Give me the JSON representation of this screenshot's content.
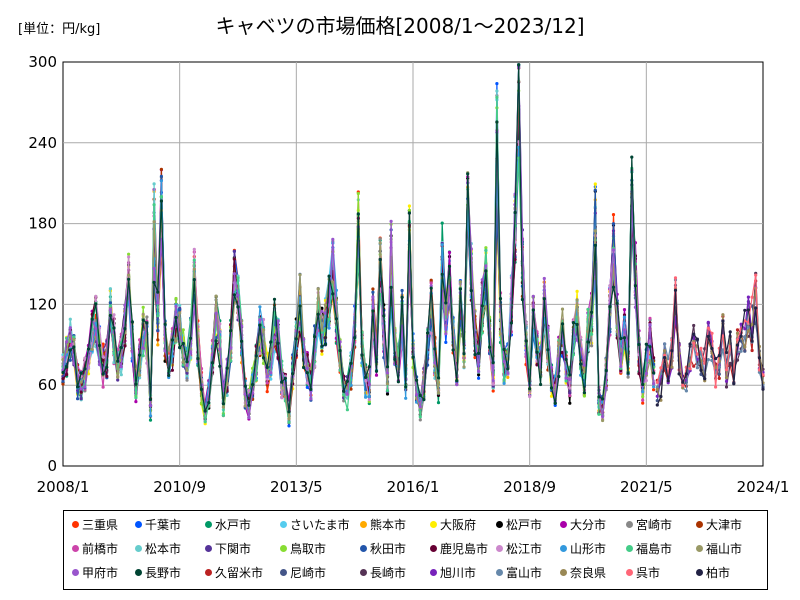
{
  "chart_data": {
    "type": "line",
    "title": "キャベツの市場価格[2008/1～2023/12]",
    "unit_label": "[単位：円/kg]",
    "ylim": [
      0,
      300
    ],
    "yticks": [
      0,
      60,
      120,
      180,
      240,
      300
    ],
    "xlim": [
      "2008/1",
      "2024/1"
    ],
    "xticks": [
      "2008/1",
      "2010/9",
      "2013/5",
      "2016/1",
      "2018/9",
      "2021/5",
      "2024/1"
    ],
    "grid": true,
    "legend_position": "bottom",
    "x_monthly_from": "2008/1",
    "representative_monthly_values": [
      70,
      80,
      95,
      85,
      62,
      60,
      68,
      80,
      100,
      110,
      90,
      75,
      80,
      118,
      95,
      75,
      85,
      105,
      140,
      92,
      60,
      78,
      100,
      95,
      45,
      70,
      110,
      190,
      95,
      75,
      88,
      110,
      105,
      85,
      75,
      95,
      140,
      90,
      60,
      40,
      55,
      80,
      110,
      90,
      50,
      65,
      95,
      140,
      125,
      95,
      55,
      45,
      60,
      75,
      100,
      90,
      70,
      80,
      105,
      95,
      65,
      55,
      40,
      70,
      95,
      120,
      85,
      75,
      60,
      90,
      115,
      100,
      105,
      120,
      145,
      110,
      80,
      60,
      55,
      70,
      100,
      180,
      90,
      65,
      60,
      110,
      80,
      150,
      100,
      65,
      185,
      90,
      75,
      110,
      65,
      165,
      85,
      55,
      45,
      60,
      90,
      120,
      80,
      60,
      70,
      110,
      140,
      95,
      70,
      120,
      90,
      195,
      140,
      100,
      80,
      120,
      140,
      95,
      70,
      90,
      110,
      75,
      80,
      120,
      175,
      265,
      150,
      90,
      60,
      110,
      90,
      75,
      120,
      90,
      65,
      55,
      80,
      100,
      75,
      60,
      95,
      110,
      80,
      65,
      100,
      110,
      75,
      50,
      45,
      70,
      120,
      160,
      110,
      80,
      100,
      80,
      200,
      140,
      85,
      60,
      75,
      95,
      70,
      55,
      60,
      80,
      65,
      85,
      120,
      80,
      60,
      65,
      80,
      90,
      85,
      80,
      75,
      95,
      85,
      70,
      80,
      100,
      75,
      85,
      65,
      90,
      95,
      100,
      110,
      120,
      130,
      80,
      65
    ],
    "peak_values": [
      {
        "x": "2010/2",
        "y": 210
      },
      {
        "x": "2015/7",
        "y": 185
      },
      {
        "x": "2016/9",
        "y": 200
      },
      {
        "x": "2017/12",
        "y": 295
      },
      {
        "x": "2020/3",
        "y": 212
      },
      {
        "x": "2023/10",
        "y": 137
      }
    ],
    "series": [
      {
        "name": "三重県",
        "color": "#ff3300"
      },
      {
        "name": "千葉市",
        "color": "#0055ff"
      },
      {
        "name": "水戸市",
        "color": "#009966"
      },
      {
        "name": "さいたま市",
        "color": "#55ccee"
      },
      {
        "name": "熊本市",
        "color": "#ffaa00"
      },
      {
        "name": "大阪府",
        "color": "#ffee00"
      },
      {
        "name": "松戸市",
        "color": "#000000"
      },
      {
        "name": "大分市",
        "color": "#aa00aa"
      },
      {
        "name": "宮崎市",
        "color": "#888888"
      },
      {
        "name": "大津市",
        "color": "#aa3300"
      },
      {
        "name": "前橋市",
        "color": "#cc44aa"
      },
      {
        "name": "松本市",
        "color": "#66cccc"
      },
      {
        "name": "下関市",
        "color": "#553399"
      },
      {
        "name": "鳥取市",
        "color": "#88dd33"
      },
      {
        "name": "秋田市",
        "color": "#2255aa"
      },
      {
        "name": "鹿児島市",
        "color": "#660033"
      },
      {
        "name": "松江市",
        "color": "#cc88cc"
      },
      {
        "name": "山形市",
        "color": "#3399dd"
      },
      {
        "name": "福島市",
        "color": "#44cc88"
      },
      {
        "name": "福山市",
        "color": "#999966"
      },
      {
        "name": "甲府市",
        "color": "#9955cc"
      },
      {
        "name": "長野市",
        "color": "#004433"
      },
      {
        "name": "久留米市",
        "color": "#bb2222"
      },
      {
        "name": "尼崎市",
        "color": "#445588"
      },
      {
        "name": "長崎市",
        "color": "#553355"
      },
      {
        "name": "旭川市",
        "color": "#7722bb"
      },
      {
        "name": "富山市",
        "color": "#6688aa"
      },
      {
        "name": "奈良県",
        "color": "#998855"
      },
      {
        "name": "呉市",
        "color": "#ff6677"
      },
      {
        "name": "柏市",
        "color": "#222244"
      }
    ]
  }
}
